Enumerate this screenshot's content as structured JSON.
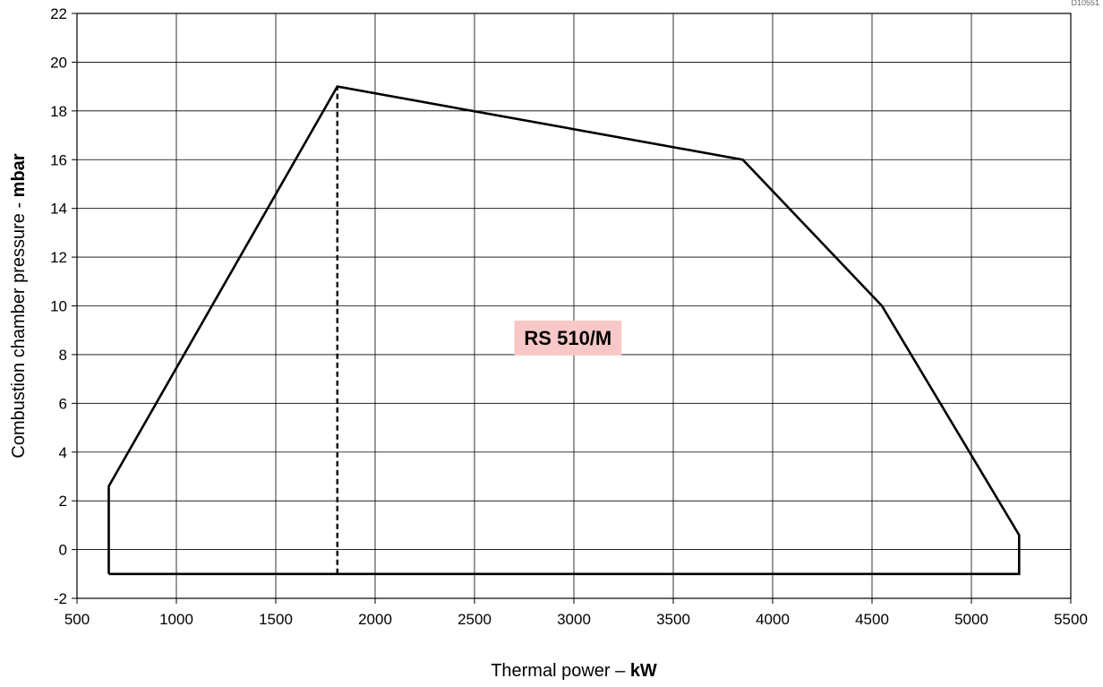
{
  "corner_code": "D10551",
  "colors": {
    "frame": "#000000",
    "grid": "#000000",
    "envelope": "#000000",
    "label_background": "#f8c8c8"
  },
  "chart_data": {
    "type": "line",
    "xlabel": {
      "text": "Thermal power – ",
      "bold": "kW"
    },
    "ylabel": {
      "text": "Combustion chamber pressure - ",
      "bold": "mbar"
    },
    "xlim": [
      500,
      5500
    ],
    "ylim": [
      -2,
      22
    ],
    "x_ticks": [
      500,
      1000,
      1500,
      2000,
      2500,
      3000,
      3500,
      4000,
      4500,
      5000,
      5500
    ],
    "y_ticks": [
      -2,
      0,
      2,
      4,
      6,
      8,
      10,
      12,
      14,
      16,
      18,
      20,
      22
    ],
    "grid": true,
    "series": [
      {
        "name": "RS 510/M",
        "style": "solid",
        "points": [
          [
            660,
            -1
          ],
          [
            660,
            2.6
          ],
          [
            1810,
            19
          ],
          [
            3850,
            16
          ],
          [
            4550,
            10
          ],
          [
            5240,
            0.6
          ],
          [
            5240,
            -1
          ],
          [
            660,
            -1
          ]
        ]
      },
      {
        "style": "dashed",
        "points": [
          [
            1810,
            -1
          ],
          [
            1810,
            19
          ]
        ]
      }
    ],
    "annotations": [
      {
        "text": "RS 510/M",
        "x": 2970,
        "y": 8.7
      }
    ]
  }
}
